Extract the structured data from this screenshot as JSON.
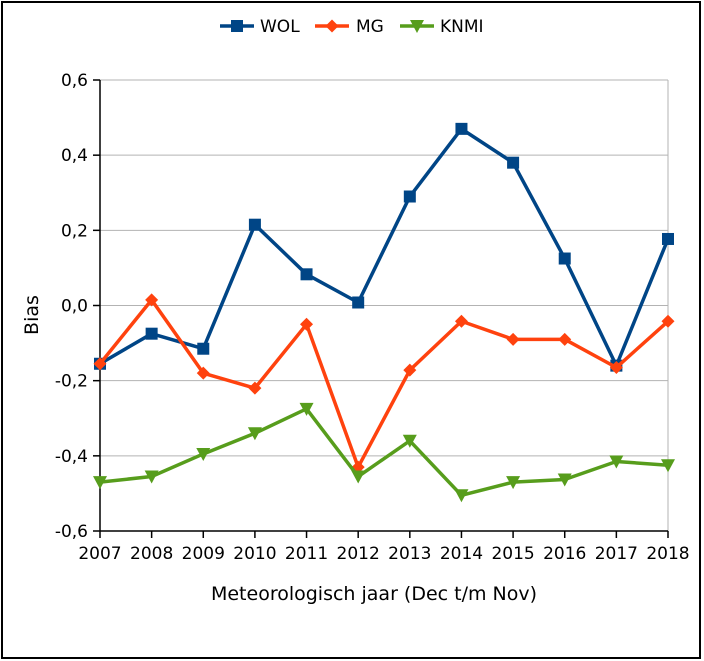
{
  "chart_data": {
    "type": "line",
    "title": "",
    "xlabel": "Meteorologisch jaar (Dec t/m Nov)",
    "ylabel": "Bias",
    "categories": [
      "2007",
      "2008",
      "2009",
      "2010",
      "2011",
      "2012",
      "2013",
      "2014",
      "2015",
      "2016",
      "2017",
      "2018"
    ],
    "ylim": [
      -0.6,
      0.6
    ],
    "yticks": [
      {
        "value": 0.6,
        "label": "0,6"
      },
      {
        "value": 0.4,
        "label": "0,4"
      },
      {
        "value": 0.2,
        "label": "0,2"
      },
      {
        "value": 0.0,
        "label": "0,0"
      },
      {
        "value": -0.2,
        "label": "-0,2"
      },
      {
        "value": -0.4,
        "label": "-0,4"
      },
      {
        "value": -0.6,
        "label": "-0,6"
      }
    ],
    "grid": "horizontal",
    "legend_position": "top",
    "series": [
      {
        "name": "WOL",
        "color": "#004586",
        "marker": "square",
        "values": [
          -0.155,
          -0.075,
          -0.115,
          0.215,
          0.083,
          0.008,
          0.29,
          0.47,
          0.38,
          0.125,
          -0.16,
          0.177
        ]
      },
      {
        "name": "MG",
        "color": "#ff420e",
        "marker": "diamond",
        "values": [
          -0.155,
          0.015,
          -0.18,
          -0.22,
          -0.05,
          -0.43,
          -0.172,
          -0.042,
          -0.09,
          -0.09,
          -0.165,
          -0.042
        ]
      },
      {
        "name": "KNMI",
        "color": "#579d1c",
        "marker": "triangle-down",
        "values": [
          -0.47,
          -0.455,
          -0.395,
          -0.34,
          -0.275,
          -0.455,
          -0.36,
          -0.505,
          -0.47,
          -0.463,
          -0.415,
          -0.425
        ]
      }
    ]
  }
}
